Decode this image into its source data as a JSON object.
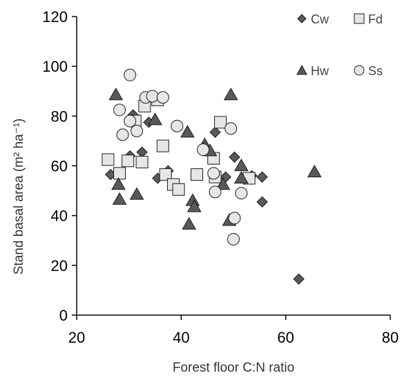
{
  "chart_data": {
    "type": "scatter",
    "xlabel": "Forest floor C:N ratio",
    "ylabel": "Stand basal area (m² ha⁻¹)",
    "xlim": [
      20,
      80
    ],
    "ylim": [
      0,
      120
    ],
    "x_ticks": [
      "20",
      "40",
      "60",
      "80"
    ],
    "y_ticks": [
      "0",
      "20",
      "40",
      "60",
      "80",
      "100",
      "120"
    ],
    "grid": false,
    "legend_placement": "top-right",
    "series": [
      {
        "name": "Cw",
        "marker": "diamond",
        "color": "#595959",
        "points": [
          [
            26.5,
            56.5
          ],
          [
            30.2,
            64
          ],
          [
            30.8,
            80.5
          ],
          [
            32.5,
            65.5
          ],
          [
            33.8,
            77.5
          ],
          [
            35.5,
            55
          ],
          [
            37.5,
            58
          ],
          [
            46.5,
            73.5
          ],
          [
            48.5,
            55.5
          ],
          [
            50.2,
            63.5
          ],
          [
            53.5,
            56
          ],
          [
            55.5,
            55.5
          ],
          [
            55.5,
            45.5
          ],
          [
            62.5,
            14.5
          ]
        ]
      },
      {
        "name": "Fd",
        "marker": "square",
        "color": "#e6e6e6",
        "points": [
          [
            26,
            62.5
          ],
          [
            28.2,
            57
          ],
          [
            29.8,
            62
          ],
          [
            31.2,
            78
          ],
          [
            32.5,
            61.5
          ],
          [
            33,
            84
          ],
          [
            35.5,
            86.5
          ],
          [
            36.5,
            68
          ],
          [
            37,
            56.5
          ],
          [
            38.5,
            52.5
          ],
          [
            39.5,
            50.5
          ],
          [
            43,
            56.5
          ],
          [
            46.2,
            63
          ],
          [
            46.5,
            55.5
          ],
          [
            47.5,
            77.5
          ],
          [
            53,
            55
          ]
        ]
      },
      {
        "name": "Hw",
        "marker": "triangle",
        "color": "#595959",
        "points": [
          [
            27.5,
            88.5
          ],
          [
            28,
            52.5
          ],
          [
            28.2,
            46.5
          ],
          [
            31.5,
            48.5
          ],
          [
            35,
            78.5
          ],
          [
            41.2,
            73.5
          ],
          [
            41.5,
            36.5
          ],
          [
            42.2,
            46
          ],
          [
            42.5,
            43.5
          ],
          [
            44.5,
            68.5
          ],
          [
            45.5,
            66
          ],
          [
            48,
            52.5
          ],
          [
            49.2,
            38
          ],
          [
            49.5,
            88.5
          ],
          [
            51.5,
            60
          ],
          [
            51.5,
            55
          ],
          [
            65.5,
            57.5
          ]
        ]
      },
      {
        "name": "Ss",
        "marker": "circle",
        "color": "#e6e6e6",
        "points": [
          [
            28.2,
            82.5
          ],
          [
            28.8,
            72.5
          ],
          [
            30.2,
            96.5
          ],
          [
            30.2,
            78
          ],
          [
            31.5,
            74
          ],
          [
            33.2,
            87.5
          ],
          [
            34.5,
            88
          ],
          [
            36.5,
            87.5
          ],
          [
            39.2,
            76
          ],
          [
            44.2,
            66.5
          ],
          [
            46.2,
            57
          ],
          [
            46.5,
            49.5
          ],
          [
            49.5,
            75
          ],
          [
            50.2,
            39
          ],
          [
            51.5,
            49
          ],
          [
            50,
            30.5
          ]
        ]
      }
    ]
  }
}
